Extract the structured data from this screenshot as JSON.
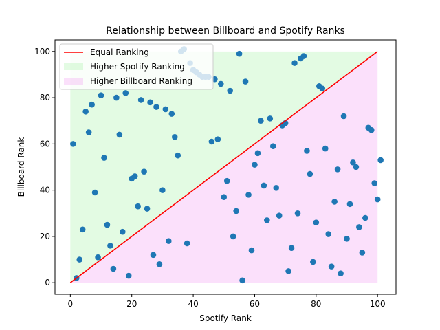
{
  "chart_data": {
    "type": "scatter",
    "title": "Relationship between Billboard and Spotify Ranks",
    "xlabel": "Spotify Rank",
    "ylabel": "Billboard Rank",
    "xlim": [
      -5,
      106
    ],
    "ylim": [
      -5,
      105
    ],
    "x_ticks": [
      0,
      20,
      40,
      60,
      80,
      100
    ],
    "y_ticks": [
      0,
      20,
      40,
      60,
      80,
      100
    ],
    "grid": false,
    "legend_position": "top-left",
    "legend": [
      {
        "label": "Equal Ranking",
        "kind": "line",
        "color": "#ff0000"
      },
      {
        "label": "Higher Spotify Ranking",
        "kind": "patch",
        "color": "#90ee90"
      },
      {
        "label": "Higher Billboard Ranking",
        "kind": "patch",
        "color": "#ee82ee"
      }
    ],
    "point_color": "#1f77b4",
    "equal_line": [
      [
        0,
        0
      ],
      [
        100,
        100
      ]
    ],
    "points": [
      [
        0.9,
        60
      ],
      [
        2,
        2
      ],
      [
        3,
        10
      ],
      [
        4,
        23
      ],
      [
        5,
        74
      ],
      [
        6,
        65
      ],
      [
        7,
        77
      ],
      [
        8,
        39
      ],
      [
        9,
        11
      ],
      [
        10,
        81
      ],
      [
        11,
        54
      ],
      [
        12,
        25
      ],
      [
        13,
        16
      ],
      [
        14,
        6
      ],
      [
        15,
        80
      ],
      [
        16,
        64
      ],
      [
        17,
        22
      ],
      [
        18,
        82
      ],
      [
        19,
        3
      ],
      [
        20,
        45
      ],
      [
        21,
        46
      ],
      [
        22,
        33
      ],
      [
        23,
        79
      ],
      [
        24,
        48
      ],
      [
        25,
        32
      ],
      [
        26,
        78
      ],
      [
        27,
        12
      ],
      [
        28,
        76
      ],
      [
        29,
        8
      ],
      [
        30,
        40
      ],
      [
        31,
        75
      ],
      [
        32,
        18
      ],
      [
        33,
        73
      ],
      [
        34,
        63
      ],
      [
        35,
        55
      ],
      [
        36,
        100
      ],
      [
        37,
        101
      ],
      [
        38,
        17
      ],
      [
        39,
        95
      ],
      [
        40,
        92
      ],
      [
        41,
        91
      ],
      [
        42,
        90
      ],
      [
        43,
        89
      ],
      [
        44,
        89
      ],
      [
        45,
        89
      ],
      [
        46,
        61
      ],
      [
        47,
        88
      ],
      [
        48,
        62
      ],
      [
        49,
        86
      ],
      [
        50,
        37
      ],
      [
        51,
        44
      ],
      [
        52,
        83
      ],
      [
        53,
        20
      ],
      [
        54,
        31
      ],
      [
        55,
        99
      ],
      [
        56,
        1
      ],
      [
        57,
        87
      ],
      [
        58,
        38
      ],
      [
        59,
        14
      ],
      [
        60,
        51
      ],
      [
        61,
        56
      ],
      [
        62,
        70
      ],
      [
        63,
        42
      ],
      [
        64,
        27
      ],
      [
        65,
        71
      ],
      [
        66,
        59
      ],
      [
        67,
        41
      ],
      [
        68,
        29
      ],
      [
        69,
        68
      ],
      [
        70,
        69
      ],
      [
        71,
        5
      ],
      [
        72,
        15
      ],
      [
        73,
        95
      ],
      [
        74,
        30
      ],
      [
        75,
        97
      ],
      [
        76,
        98
      ],
      [
        77,
        57
      ],
      [
        78,
        47
      ],
      [
        79,
        9
      ],
      [
        80,
        26
      ],
      [
        81,
        85
      ],
      [
        82,
        84
      ],
      [
        83,
        58
      ],
      [
        84,
        21
      ],
      [
        85,
        7
      ],
      [
        86,
        35
      ],
      [
        87,
        49
      ],
      [
        88,
        4
      ],
      [
        89,
        72
      ],
      [
        90,
        19
      ],
      [
        91,
        34
      ],
      [
        92,
        52
      ],
      [
        93,
        50
      ],
      [
        94,
        24
      ],
      [
        95,
        13
      ],
      [
        96,
        28
      ],
      [
        97,
        67
      ],
      [
        98,
        66
      ],
      [
        99,
        43
      ],
      [
        100,
        36
      ],
      [
        101,
        53
      ]
    ]
  }
}
